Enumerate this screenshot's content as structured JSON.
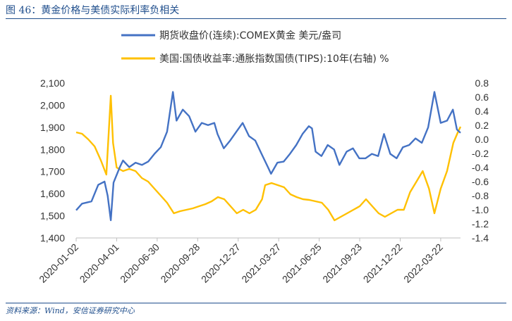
{
  "figure": {
    "title": "图 46：黄金价格与美债实际利率负相关",
    "source": "资料来源：Wind，安信证券研究中心"
  },
  "colors": {
    "gold": "#4472c4",
    "tips": "#ffc000",
    "accent": "#1f4e8c"
  },
  "chart_data": {
    "type": "line",
    "x_ticks": [
      "2020-01-02",
      "2020-04-01",
      "2020-06-30",
      "2020-09-28",
      "2020-12-27",
      "2021-03-27",
      "2021-06-25",
      "2021-09-23",
      "2021-12-22",
      "2022-03-22"
    ],
    "x_range": [
      "2020-01-02",
      "2022-05-05"
    ],
    "y_left": {
      "ticks": [
        "1,400",
        "1,500",
        "1,600",
        "1,700",
        "1,800",
        "1,900",
        "2,000",
        "2,100"
      ],
      "ylim": [
        1400,
        2100
      ]
    },
    "y_right": {
      "ticks": [
        "-1.4",
        "-1.2",
        "-1.0",
        "-0.8",
        "-0.6",
        "-0.4",
        "-0.2",
        "0.0",
        "0.2",
        "0.4",
        "0.6",
        "0.8"
      ],
      "ylim": [
        -1.4,
        0.8
      ]
    },
    "grid": false,
    "legend_position": "top",
    "series": [
      {
        "name": "期货收盘价(连续):COMEX黄金 美元/盎司",
        "axis": "left",
        "points": [
          [
            "2020-01-02",
            1525
          ],
          [
            "2020-01-15",
            1555
          ],
          [
            "2020-02-05",
            1565
          ],
          [
            "2020-02-20",
            1640
          ],
          [
            "2020-03-05",
            1655
          ],
          [
            "2020-03-12",
            1590
          ],
          [
            "2020-03-19",
            1480
          ],
          [
            "2020-03-25",
            1650
          ],
          [
            "2020-04-08",
            1720
          ],
          [
            "2020-04-15",
            1750
          ],
          [
            "2020-04-29",
            1720
          ],
          [
            "2020-05-13",
            1740
          ],
          [
            "2020-05-27",
            1730
          ],
          [
            "2020-06-10",
            1745
          ],
          [
            "2020-06-24",
            1780
          ],
          [
            "2020-07-08",
            1810
          ],
          [
            "2020-07-22",
            1880
          ],
          [
            "2020-08-04",
            2060
          ],
          [
            "2020-08-12",
            1930
          ],
          [
            "2020-08-26",
            1980
          ],
          [
            "2020-09-09",
            1950
          ],
          [
            "2020-09-23",
            1880
          ],
          [
            "2020-10-07",
            1920
          ],
          [
            "2020-10-21",
            1910
          ],
          [
            "2020-11-04",
            1920
          ],
          [
            "2020-11-11",
            1870
          ],
          [
            "2020-11-25",
            1805
          ],
          [
            "2020-12-09",
            1840
          ],
          [
            "2020-12-23",
            1880
          ],
          [
            "2021-01-06",
            1920
          ],
          [
            "2021-01-20",
            1860
          ],
          [
            "2021-02-03",
            1840
          ],
          [
            "2021-02-17",
            1780
          ],
          [
            "2021-03-03",
            1720
          ],
          [
            "2021-03-10",
            1690
          ],
          [
            "2021-03-24",
            1740
          ],
          [
            "2021-04-07",
            1745
          ],
          [
            "2021-04-21",
            1780
          ],
          [
            "2021-05-05",
            1820
          ],
          [
            "2021-05-19",
            1870
          ],
          [
            "2021-06-02",
            1905
          ],
          [
            "2021-06-09",
            1895
          ],
          [
            "2021-06-17",
            1790
          ],
          [
            "2021-06-30",
            1770
          ],
          [
            "2021-07-14",
            1820
          ],
          [
            "2021-07-28",
            1800
          ],
          [
            "2021-08-09",
            1730
          ],
          [
            "2021-08-25",
            1790
          ],
          [
            "2021-09-08",
            1805
          ],
          [
            "2021-09-22",
            1760
          ],
          [
            "2021-10-06",
            1760
          ],
          [
            "2021-10-20",
            1780
          ],
          [
            "2021-11-03",
            1770
          ],
          [
            "2021-11-16",
            1870
          ],
          [
            "2021-11-30",
            1780
          ],
          [
            "2021-12-14",
            1760
          ],
          [
            "2021-12-28",
            1810
          ],
          [
            "2022-01-11",
            1820
          ],
          [
            "2022-01-25",
            1850
          ],
          [
            "2022-02-08",
            1830
          ],
          [
            "2022-02-22",
            1900
          ],
          [
            "2022-03-08",
            2060
          ],
          [
            "2022-03-22",
            1920
          ],
          [
            "2022-04-05",
            1930
          ],
          [
            "2022-04-18",
            1980
          ],
          [
            "2022-04-27",
            1890
          ],
          [
            "2022-05-05",
            1875
          ]
        ]
      },
      {
        "name": "美国:国债收益率:通胀指数国债(TIPS):10年(右轴) %",
        "axis": "right",
        "points": [
          [
            "2020-01-02",
            0.1
          ],
          [
            "2020-01-15",
            0.08
          ],
          [
            "2020-01-29",
            0.0
          ],
          [
            "2020-02-12",
            -0.1
          ],
          [
            "2020-02-26",
            -0.3
          ],
          [
            "2020-03-09",
            -0.5
          ],
          [
            "2020-03-19",
            0.62
          ],
          [
            "2020-03-24",
            -0.05
          ],
          [
            "2020-04-01",
            -0.4
          ],
          [
            "2020-04-15",
            -0.45
          ],
          [
            "2020-04-29",
            -0.42
          ],
          [
            "2020-05-13",
            -0.45
          ],
          [
            "2020-05-27",
            -0.55
          ],
          [
            "2020-06-10",
            -0.6
          ],
          [
            "2020-06-24",
            -0.7
          ],
          [
            "2020-07-08",
            -0.8
          ],
          [
            "2020-07-22",
            -0.9
          ],
          [
            "2020-08-06",
            -1.05
          ],
          [
            "2020-08-20",
            -1.02
          ],
          [
            "2020-09-03",
            -1.0
          ],
          [
            "2020-09-17",
            -0.98
          ],
          [
            "2020-10-01",
            -0.95
          ],
          [
            "2020-10-15",
            -0.92
          ],
          [
            "2020-10-29",
            -0.88
          ],
          [
            "2020-11-12",
            -0.82
          ],
          [
            "2020-11-26",
            -0.85
          ],
          [
            "2020-12-10",
            -0.95
          ],
          [
            "2020-12-24",
            -1.05
          ],
          [
            "2021-01-07",
            -1.0
          ],
          [
            "2021-01-21",
            -1.05
          ],
          [
            "2021-02-04",
            -1.0
          ],
          [
            "2021-02-18",
            -0.85
          ],
          [
            "2021-02-25",
            -0.65
          ],
          [
            "2021-03-11",
            -0.62
          ],
          [
            "2021-03-25",
            -0.65
          ],
          [
            "2021-04-08",
            -0.68
          ],
          [
            "2021-04-22",
            -0.78
          ],
          [
            "2021-05-06",
            -0.82
          ],
          [
            "2021-05-20",
            -0.85
          ],
          [
            "2021-06-03",
            -0.86
          ],
          [
            "2021-06-17",
            -0.88
          ],
          [
            "2021-07-01",
            -0.9
          ],
          [
            "2021-07-15",
            -1.0
          ],
          [
            "2021-07-29",
            -1.15
          ],
          [
            "2021-08-12",
            -1.1
          ],
          [
            "2021-08-26",
            -1.05
          ],
          [
            "2021-09-09",
            -1.0
          ],
          [
            "2021-09-23",
            -0.95
          ],
          [
            "2021-10-07",
            -0.85
          ],
          [
            "2021-10-21",
            -0.95
          ],
          [
            "2021-11-04",
            -1.05
          ],
          [
            "2021-11-18",
            -1.1
          ],
          [
            "2021-12-02",
            -1.05
          ],
          [
            "2021-12-16",
            -1.0
          ],
          [
            "2021-12-30",
            -1.0
          ],
          [
            "2022-01-13",
            -0.75
          ],
          [
            "2022-01-27",
            -0.6
          ],
          [
            "2022-02-10",
            -0.45
          ],
          [
            "2022-02-24",
            -0.7
          ],
          [
            "2022-03-08",
            -1.05
          ],
          [
            "2022-03-22",
            -0.7
          ],
          [
            "2022-04-05",
            -0.45
          ],
          [
            "2022-04-19",
            -0.05
          ],
          [
            "2022-04-29",
            0.1
          ],
          [
            "2022-05-05",
            0.18
          ]
        ]
      }
    ]
  }
}
